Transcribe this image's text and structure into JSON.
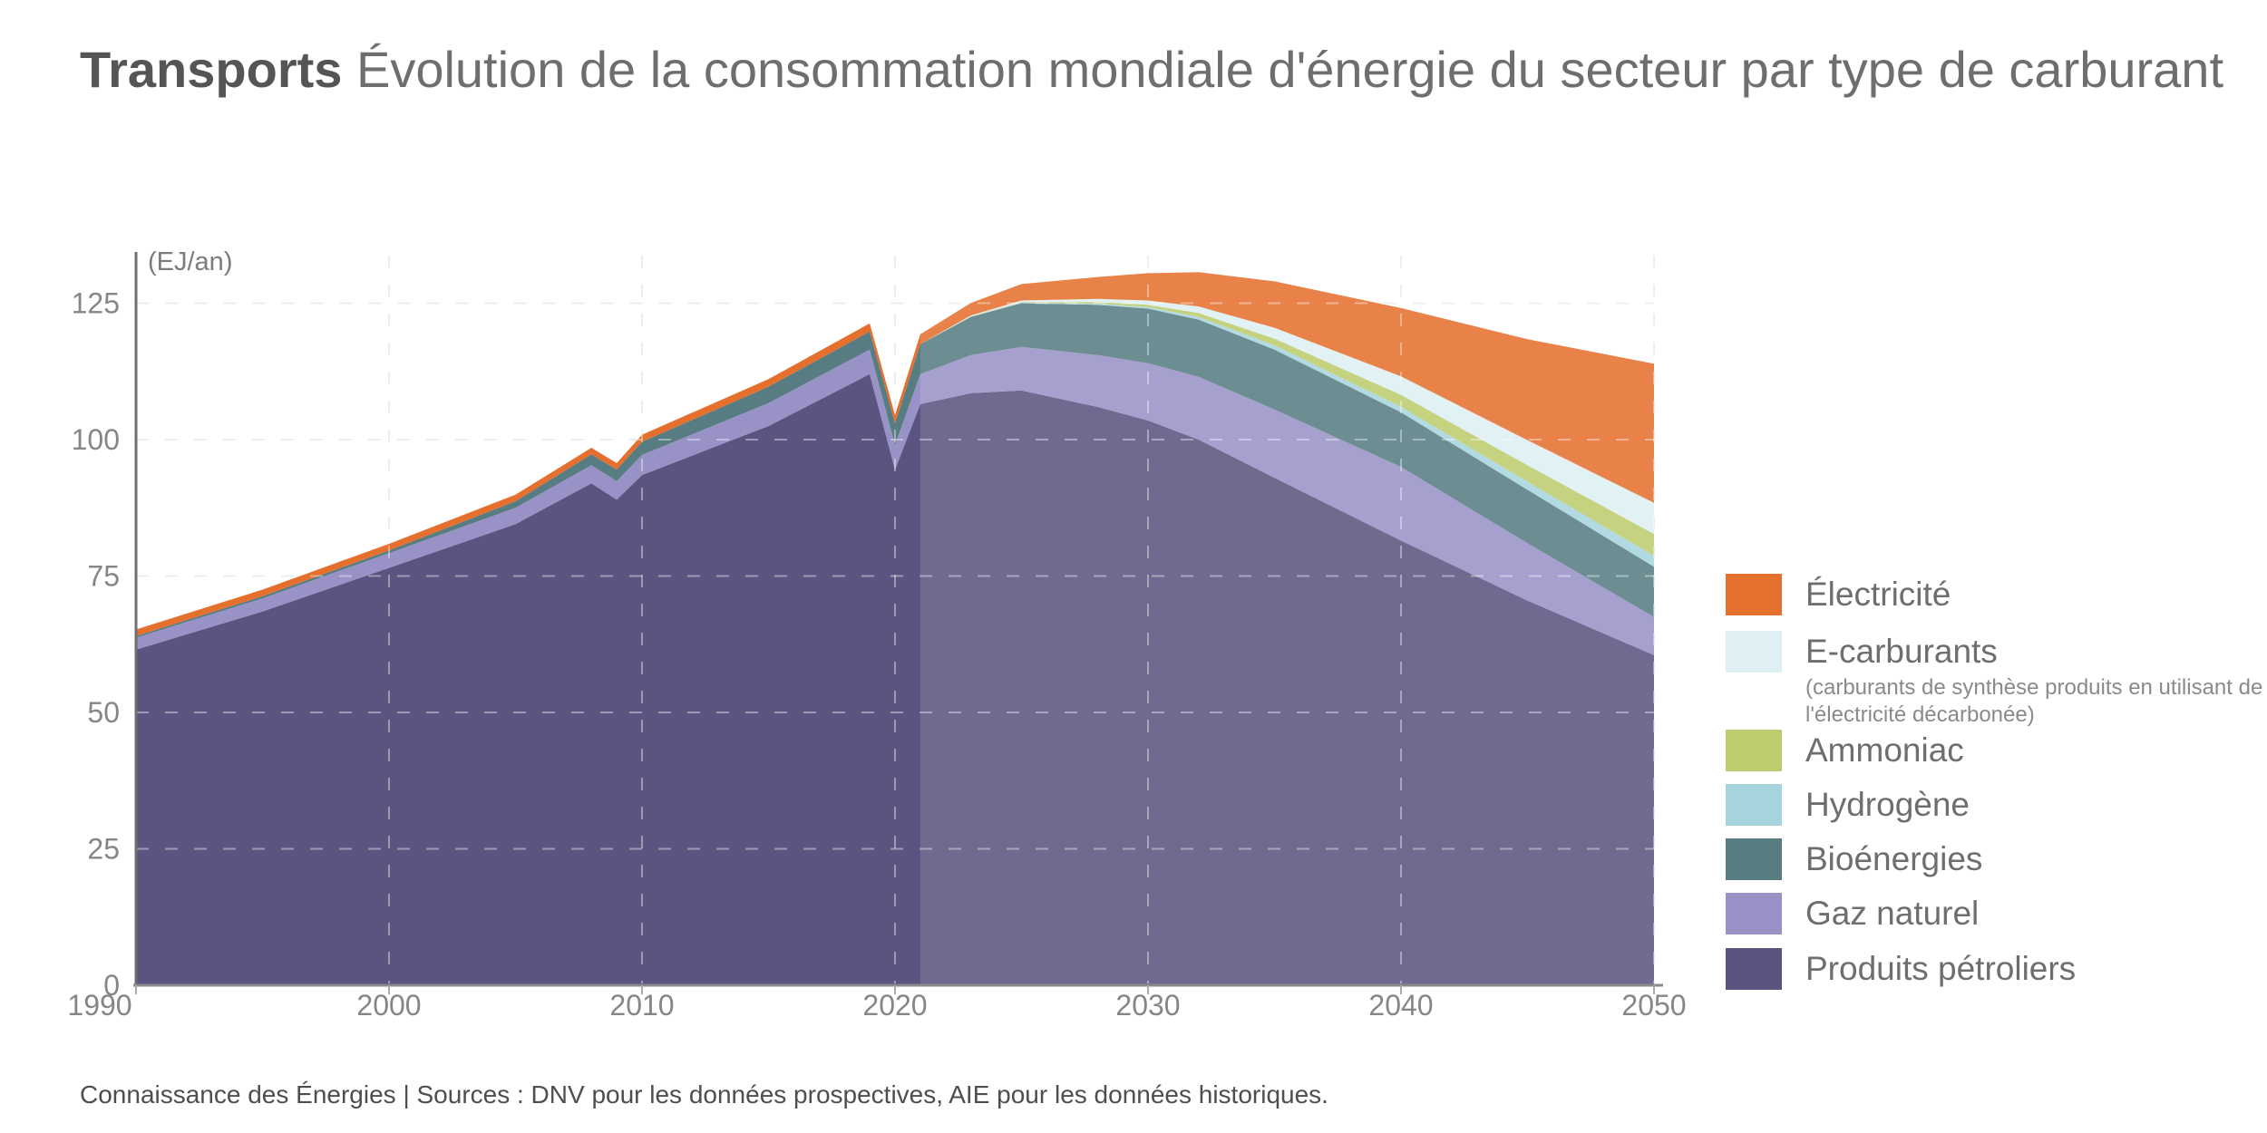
{
  "title": {
    "bold": "Transports",
    "rest": " Évolution de la consommation mondiale d'énergie du secteur par type de carburant"
  },
  "footer": {
    "text": "Connaissance des Énergies | Sources : DNV pour les données prospectives, AIE pour les données historiques."
  },
  "legend": {
    "items": [
      {
        "label": "Électricité",
        "color": "#E5702E"
      },
      {
        "label": "E-carburants",
        "color": "#DEF0F3",
        "note": "(carburants de synthèse produits en utilisant de l'électricité décarbonée)"
      },
      {
        "label": "Ammoniac",
        "color": "#BDCC6E"
      },
      {
        "label": "Hydrogène",
        "color": "#A7D5DE"
      },
      {
        "label": "Bioénergies",
        "color": "#577C81"
      },
      {
        "label": "Gaz naturel",
        "color": "#9892C7"
      },
      {
        "label": "Produits pétroliers",
        "color": "#5A5580"
      }
    ]
  },
  "chart_data": {
    "type": "area",
    "stacked": true,
    "title": "Transports — Évolution de la consommation mondiale d'énergie du secteur par type de carburant",
    "ylabel": "(EJ/an)",
    "unit": "EJ/an",
    "grid": "dashed",
    "legend_position": "right",
    "x_range": [
      1990,
      2050
    ],
    "y_range": [
      0,
      125
    ],
    "x_ticks": [
      1990,
      2000,
      2010,
      2020,
      2030,
      2040,
      2050
    ],
    "y_ticks": [
      0,
      25,
      50,
      75,
      100,
      125
    ],
    "forecast_from": 2021,
    "x": [
      1990,
      1995,
      2000,
      2005,
      2008,
      2009,
      2010,
      2015,
      2019,
      2020,
      2021,
      2023,
      2025,
      2028,
      2030,
      2032,
      2035,
      2040,
      2045,
      2050
    ],
    "series": [
      {
        "name": "Produits pétroliers",
        "color": "#5A5580",
        "values": [
          61.5,
          68.5,
          76.5,
          84.5,
          92.0,
          89.0,
          93.5,
          102.5,
          112.0,
          94.5,
          106.5,
          108.5,
          109.0,
          106.0,
          103.5,
          100.0,
          93.0,
          81.5,
          70.5,
          60.5
        ]
      },
      {
        "name": "Gaz naturel",
        "color": "#9892C7",
        "values": [
          2.2,
          2.4,
          2.7,
          3.0,
          3.3,
          3.4,
          3.7,
          4.2,
          4.5,
          4.5,
          5.5,
          7.0,
          8.0,
          9.5,
          10.5,
          11.5,
          12.5,
          13.5,
          10.5,
          7.0
        ]
      },
      {
        "name": "Bioénergies",
        "color": "#577C81",
        "values": [
          0.3,
          0.4,
          0.5,
          1.2,
          2.0,
          2.1,
          2.4,
          3.0,
          3.3,
          4.0,
          5.5,
          7.0,
          8.0,
          9.2,
          10.0,
          10.5,
          11.0,
          10.0,
          9.8,
          9.2
        ]
      },
      {
        "name": "Hydrogène",
        "color": "#A7D5DE",
        "values": [
          0,
          0,
          0,
          0,
          0,
          0,
          0,
          0,
          0,
          0,
          0,
          0.05,
          0.1,
          0.2,
          0.3,
          0.5,
          0.8,
          1.0,
          1.5,
          2.0
        ]
      },
      {
        "name": "Ammoniac",
        "color": "#BDCC6E",
        "values": [
          0,
          0,
          0,
          0,
          0,
          0,
          0,
          0,
          0,
          0,
          0,
          0.05,
          0.1,
          0.3,
          0.4,
          0.7,
          1.2,
          2.2,
          3.0,
          4.0
        ]
      },
      {
        "name": "E-carburants",
        "color": "#DEF0F3",
        "values": [
          0,
          0,
          0,
          0,
          0,
          0,
          0,
          0,
          0,
          0,
          0,
          0.15,
          0.3,
          0.6,
          0.8,
          1.2,
          2.0,
          3.4,
          4.6,
          5.7
        ]
      },
      {
        "name": "Électricité",
        "color": "#E5702E",
        "values": [
          1.2,
          1.2,
          1.2,
          1.2,
          1.2,
          1.2,
          1.3,
          1.4,
          1.5,
          1.5,
          1.8,
          2.3,
          3.0,
          4.0,
          5.0,
          6.3,
          8.5,
          12.5,
          18.5,
          25.5
        ]
      }
    ]
  }
}
